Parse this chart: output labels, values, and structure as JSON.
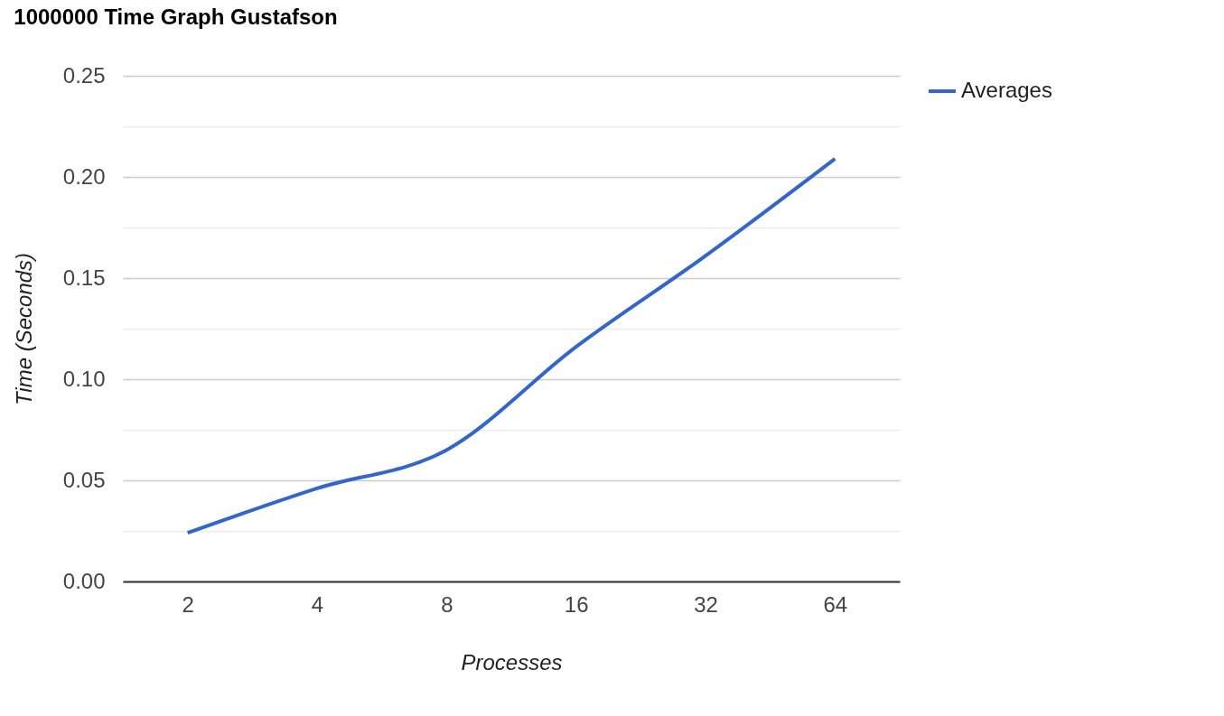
{
  "chart_data": {
    "type": "line",
    "title": "1000000 Time Graph Gustafson",
    "xlabel": "Processes",
    "ylabel": "Time (Seconds)",
    "categories": [
      "2",
      "4",
      "8",
      "16",
      "32",
      "64"
    ],
    "series": [
      {
        "name": "Averages",
        "color": "#3366cc",
        "values": [
          0.024,
          0.046,
          0.065,
          0.116,
          0.161,
          0.209
        ]
      }
    ],
    "ylim": [
      0,
      0.25
    ],
    "yticks": [
      {
        "value": 0,
        "label": "0.00"
      },
      {
        "value": 0.025,
        "label": null
      },
      {
        "value": 0.05,
        "label": "0.05"
      },
      {
        "value": 0.075,
        "label": null
      },
      {
        "value": 0.1,
        "label": "0.10"
      },
      {
        "value": 0.125,
        "label": null
      },
      {
        "value": 0.15,
        "label": "0.15"
      },
      {
        "value": 0.175,
        "label": null
      },
      {
        "value": 0.2,
        "label": "0.20"
      },
      {
        "value": 0.225,
        "label": null
      },
      {
        "value": 0.25,
        "label": "0.25"
      }
    ],
    "grid": "y",
    "legend": "top right",
    "line_style": "solid",
    "marker": "none"
  }
}
